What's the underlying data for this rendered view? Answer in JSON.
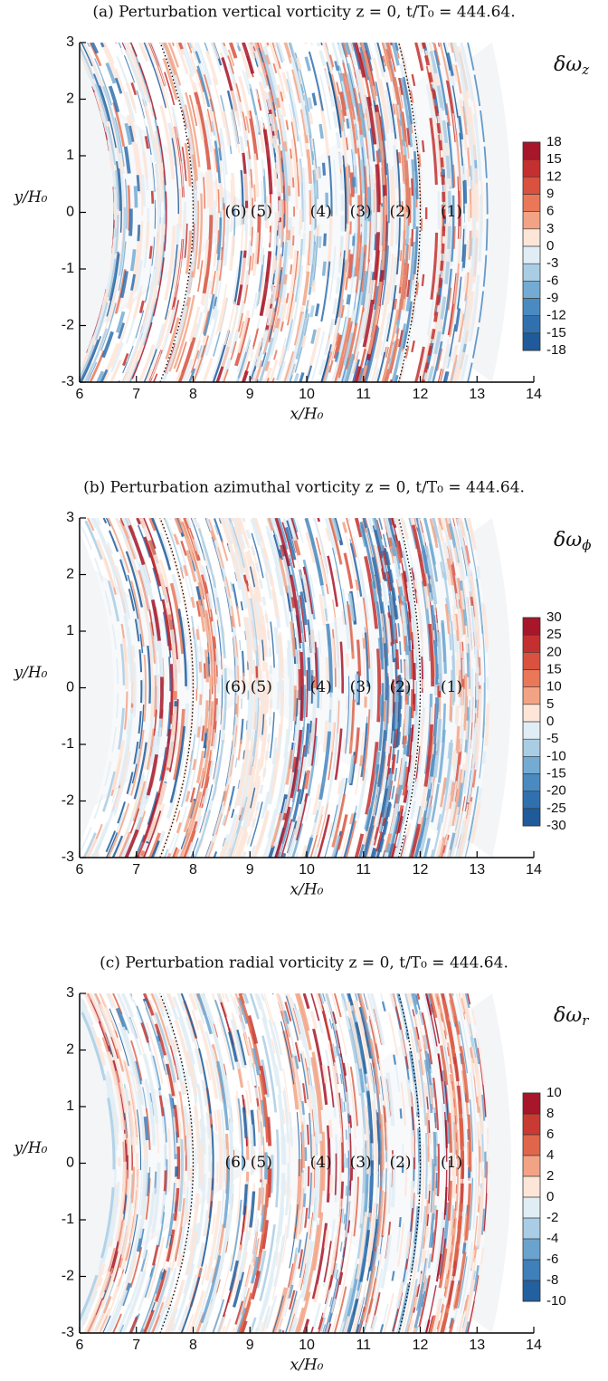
{
  "chart_data": [
    {
      "type": "heatmap",
      "title": "(a) Perturbation vertical vorticity z = 0, t/T₀ = 444.64.",
      "x_label": "x/H₀",
      "y_label": "y/H₀",
      "xlim": [
        6,
        14
      ],
      "ylim": [
        -3,
        3
      ],
      "xticks": [
        6,
        7,
        8,
        9,
        10,
        11,
        12,
        13,
        14
      ],
      "yticks": [
        -3,
        -2,
        -1,
        0,
        1,
        2,
        3
      ],
      "colorbar": {
        "label": "δω",
        "label_sub": "z",
        "ticks": [
          18,
          15,
          12,
          9,
          6,
          3,
          0,
          -3,
          -6,
          -9,
          -12,
          -15,
          -18
        ],
        "colors": [
          "#a8162a",
          "#c4302f",
          "#d95240",
          "#ea7758",
          "#f3a385",
          "#fde5d8",
          "#e0edf5",
          "#a9cde4",
          "#74abd2",
          "#4a8ac1",
          "#3170ae",
          "#1f5a9a"
        ]
      },
      "annotations": [
        "(6)",
        "(5)",
        "(4)",
        "(3)",
        "(2)",
        "(1)"
      ]
    },
    {
      "type": "heatmap",
      "title": "(b) Perturbation azimuthal vorticity z = 0, t/T₀ = 444.64.",
      "x_label": "x/H₀",
      "y_label": "y/H₀",
      "xlim": [
        6,
        14
      ],
      "ylim": [
        -3,
        3
      ],
      "xticks": [
        6,
        7,
        8,
        9,
        10,
        11,
        12,
        13,
        14
      ],
      "yticks": [
        -3,
        -2,
        -1,
        0,
        1,
        2,
        3
      ],
      "colorbar": {
        "label": "δω",
        "label_sub": "ϕ",
        "ticks": [
          30,
          25,
          20,
          15,
          10,
          5,
          0,
          -5,
          -10,
          -15,
          -20,
          -25,
          -30
        ],
        "colors": [
          "#a8162a",
          "#c4302f",
          "#d95240",
          "#ea7758",
          "#f3a385",
          "#fde5d8",
          "#e0edf5",
          "#a9cde4",
          "#74abd2",
          "#4a8ac1",
          "#3170ae",
          "#1f5a9a"
        ]
      },
      "annotations": [
        "(6)",
        "(5)",
        "(4)",
        "(3)",
        "(2)",
        "(1)"
      ]
    },
    {
      "type": "heatmap",
      "title": "(c) Perturbation radial vorticity z = 0, t/T₀ = 444.64.",
      "x_label": "x/H₀",
      "y_label": "y/H₀",
      "xlim": [
        6,
        14
      ],
      "ylim": [
        -3,
        3
      ],
      "xticks": [
        6,
        7,
        8,
        9,
        10,
        11,
        12,
        13,
        14
      ],
      "yticks": [
        -3,
        -2,
        -1,
        0,
        1,
        2,
        3
      ],
      "colorbar": {
        "label": "δω",
        "label_sub": "r",
        "ticks": [
          10,
          8,
          6,
          4,
          2,
          0,
          -2,
          -4,
          -6,
          -8,
          -10
        ],
        "colors": [
          "#a8162a",
          "#c83a32",
          "#e0664b",
          "#f3a385",
          "#fde5d8",
          "#e0edf5",
          "#a9cde4",
          "#6ba3cf",
          "#3f7fba",
          "#22609f"
        ]
      },
      "annotations": [
        "(6)",
        "(5)",
        "(4)",
        "(3)",
        "(2)",
        "(1)"
      ]
    }
  ]
}
